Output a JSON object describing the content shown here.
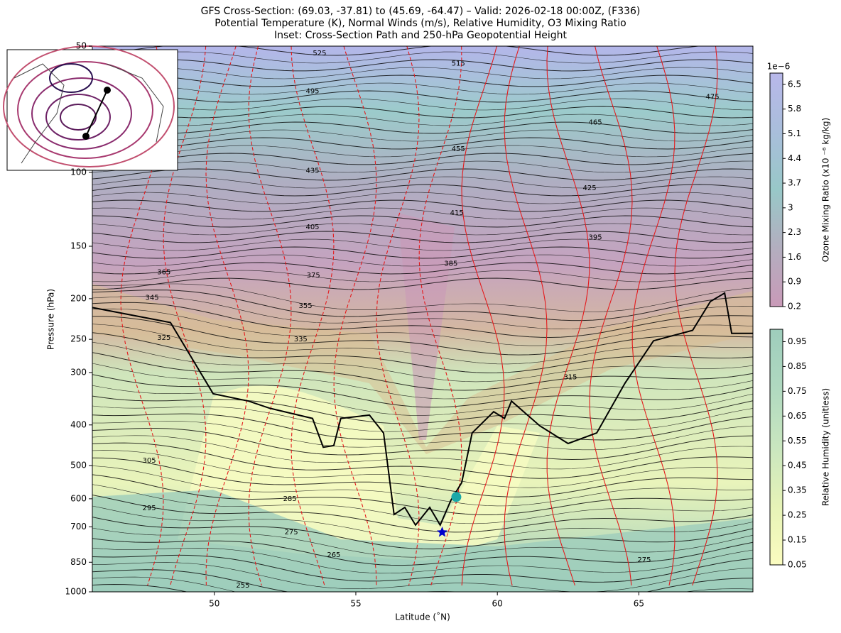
{
  "chart_data": {
    "type": "cross-section",
    "title": [
      "GFS Cross-Section: (69.03, -37.81) to (45.69, -64.47) – Valid: 2026-02-18 00:00Z, (F336)",
      "Potential Temperature (K), Normal Winds (m/s), Relative Humidity, O3 Mixing Ratio",
      "Inset: Cross-Section Path and 250-hPa Geopotential Height"
    ],
    "x_label": "Latitude (˚N)",
    "y_label": "Pressure (hPa)",
    "xlim": [
      45.69,
      69.03
    ],
    "xticks": [
      50,
      55,
      60,
      65
    ],
    "ylim": [
      1000,
      50
    ],
    "log_y": true,
    "yticks": [
      50,
      100,
      150,
      200,
      250,
      300,
      400,
      500,
      600,
      700,
      850,
      1000
    ],
    "tropopause": {
      "color": "#000000",
      "x": [
        45.69,
        48.45,
        49.96,
        51.21,
        51.96,
        53.47,
        53.85,
        54.22,
        54.47,
        55.48,
        55.98,
        56.35,
        56.73,
        57.11,
        57.61,
        57.98,
        58.36,
        58.74,
        59.11,
        59.87,
        60.25,
        60.5,
        61.5,
        62.5,
        63.51,
        64.51,
        65.52,
        66.9,
        67.53,
        68.03,
        68.28,
        69.03
      ],
      "y": [
        210,
        228,
        337,
        351,
        365,
        386,
        452,
        448,
        386,
        379,
        418,
        654,
        629,
        693,
        629,
        693,
        605,
        549,
        418,
        372,
        386,
        351,
        402,
        443,
        418,
        318,
        252,
        238,
        203,
        194,
        242,
        242
      ]
    },
    "theta_labels": [
      {
        "lat": 53.72,
        "p": 52,
        "value": 525
      },
      {
        "lat": 58.62,
        "p": 55,
        "value": 515
      },
      {
        "lat": 53.47,
        "p": 64,
        "value": 495
      },
      {
        "lat": 67.6,
        "p": 66,
        "value": 475
      },
      {
        "lat": 63.46,
        "p": 76,
        "value": 465
      },
      {
        "lat": 58.62,
        "p": 88,
        "value": 455
      },
      {
        "lat": 53.47,
        "p": 99,
        "value": 435
      },
      {
        "lat": 63.26,
        "p": 109,
        "value": 425
      },
      {
        "lat": 58.57,
        "p": 125,
        "value": 415
      },
      {
        "lat": 53.47,
        "p": 135,
        "value": 405
      },
      {
        "lat": 63.46,
        "p": 143,
        "value": 395
      },
      {
        "lat": 58.36,
        "p": 165,
        "value": 385
      },
      {
        "lat": 53.5,
        "p": 176,
        "value": 375
      },
      {
        "lat": 48.22,
        "p": 173,
        "value": 365
      },
      {
        "lat": 53.22,
        "p": 208,
        "value": 355
      },
      {
        "lat": 47.8,
        "p": 199,
        "value": 345
      },
      {
        "lat": 53.05,
        "p": 250,
        "value": 335
      },
      {
        "lat": 48.22,
        "p": 248,
        "value": 325
      },
      {
        "lat": 62.58,
        "p": 308,
        "value": 315
      },
      {
        "lat": 47.7,
        "p": 486,
        "value": 305
      },
      {
        "lat": 47.7,
        "p": 632,
        "value": 295
      },
      {
        "lat": 52.67,
        "p": 600,
        "value": 285
      },
      {
        "lat": 52.72,
        "p": 721,
        "value": 275
      },
      {
        "lat": 54.22,
        "p": 817,
        "value": 265
      },
      {
        "lat": 51.01,
        "p": 966,
        "value": 255
      },
      {
        "lat": 65.19,
        "p": 840,
        "value": 275
      }
    ],
    "markers": [
      {
        "shape": "star",
        "color": "#0000cc",
        "lat": 58.05,
        "p": 721
      },
      {
        "shape": "circle",
        "color": "#1aa8a8",
        "lat": 58.55,
        "p": 594
      }
    ],
    "colorbars": [
      {
        "label": "Ozone Mixing Ratio (x10 ⁻⁶ kg/kg)",
        "offset_label": "1e−6",
        "lim": [
          0.2,
          6.82
        ],
        "ticks": [
          0.2,
          0.9,
          1.6,
          2.3,
          3.0,
          3.7,
          4.4,
          5.1,
          5.8,
          6.5
        ],
        "colors": [
          "#c99ab8",
          "#b3aebf",
          "#98c8c8",
          "#a9bedb",
          "#b8b8ea"
        ]
      },
      {
        "label": "Relative Humidity (unitless)",
        "lim": [
          0.05,
          1.0
        ],
        "ticks": [
          0.05,
          0.15,
          0.25,
          0.35,
          0.45,
          0.55,
          0.65,
          0.75,
          0.85,
          0.95
        ],
        "colors": [
          "#fbfcc0",
          "#e6f3b7",
          "#c9e6bf",
          "#b0d9c0",
          "#9ecdbc"
        ]
      }
    ]
  }
}
